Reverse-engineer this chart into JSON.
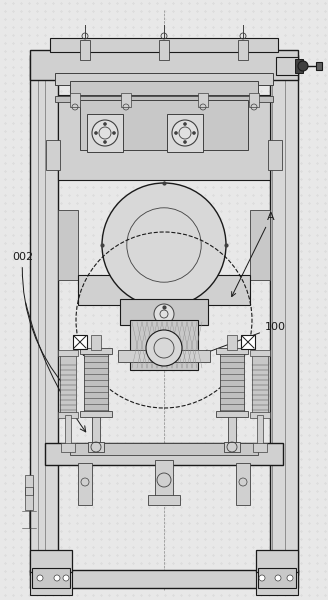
{
  "bg_color": "#e8e8e8",
  "line_color": "#404040",
  "line_color_dark": "#1a1a1a",
  "line_color_light": "#707070",
  "fill_light": "#d0d0d0",
  "fill_medium": "#b0b0b0",
  "fill_dark": "#808080",
  "fill_hatch": "#c0c0c0",
  "label_002": "002",
  "label_100": "100",
  "label_A": "A",
  "label_fontsize": 7
}
